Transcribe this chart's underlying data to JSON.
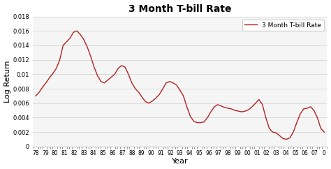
{
  "title": "3 Month T-bill Rate",
  "xlabel": "Year",
  "ylabel": "Log Return",
  "legend_label": "3 Month T-bill Rate",
  "line_color": "#b22222",
  "background_color": "#ffffff",
  "plot_bg_color": "#f5f5f5",
  "ylim": [
    0,
    0.018
  ],
  "yticks": [
    0,
    0.002,
    0.004,
    0.006,
    0.008,
    0.01,
    0.012,
    0.014,
    0.016,
    0.018
  ],
  "ytick_labels": [
    "0",
    "0.002",
    "0.004",
    "0.006",
    "0.008",
    "0.01",
    "0.012",
    "0.014",
    "0.016",
    "0.018"
  ],
  "xtick_labels": [
    "78",
    "79",
    "80",
    "81",
    "82",
    "83",
    "84",
    "85",
    "86",
    "87",
    "88",
    "89",
    "90",
    "91",
    "92",
    "93",
    "94",
    "95",
    "96",
    "97",
    "98",
    "99",
    "00",
    "01",
    "02",
    "03",
    "04",
    "05",
    "06",
    "07",
    "0"
  ],
  "values": [
    0.007,
    0.0075,
    0.0082,
    0.0088,
    0.0095,
    0.0101,
    0.0108,
    0.012,
    0.014,
    0.0145,
    0.015,
    0.0158,
    0.016,
    0.0155,
    0.0148,
    0.0138,
    0.0125,
    0.011,
    0.0098,
    0.009,
    0.0088,
    0.0092,
    0.0096,
    0.01,
    0.0108,
    0.0112,
    0.011,
    0.01,
    0.0088,
    0.008,
    0.0075,
    0.0068,
    0.0062,
    0.006,
    0.0063,
    0.0067,
    0.0072,
    0.008,
    0.0088,
    0.009,
    0.0088,
    0.0085,
    0.0078,
    0.007,
    0.0055,
    0.0042,
    0.0035,
    0.0033,
    0.0033,
    0.0034,
    0.004,
    0.0048,
    0.0055,
    0.0058,
    0.0056,
    0.0054,
    0.0053,
    0.0052,
    0.005,
    0.0049,
    0.0048,
    0.0049,
    0.0051,
    0.0055,
    0.006,
    0.0065,
    0.0058,
    0.004,
    0.0025,
    0.002,
    0.0019,
    0.0015,
    0.0011,
    0.001,
    0.0012,
    0.002,
    0.0033,
    0.0045,
    0.0052,
    0.0053,
    0.0055,
    0.005,
    0.004,
    0.0025,
    0.002
  ]
}
